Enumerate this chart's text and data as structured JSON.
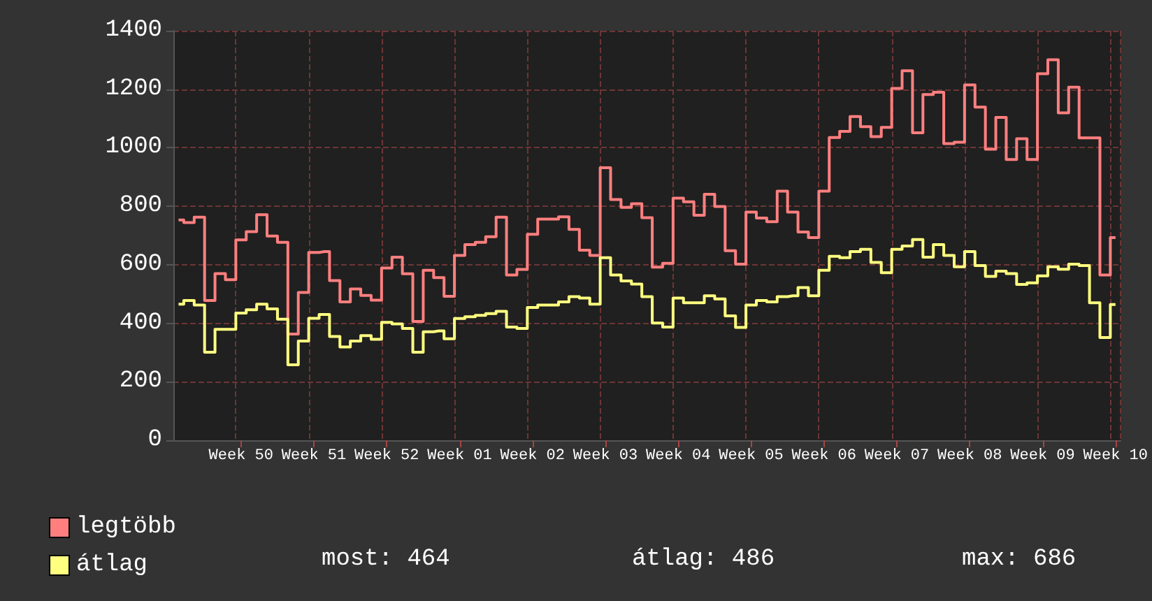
{
  "chart_data": {
    "type": "step",
    "categories": [
      null,
      null,
      null,
      null,
      null,
      null,
      "Week 50",
      null,
      null,
      null,
      null,
      null,
      null,
      "Week 51",
      null,
      null,
      null,
      null,
      null,
      null,
      "Week 52",
      null,
      null,
      null,
      null,
      null,
      null,
      "Week 01",
      null,
      null,
      null,
      null,
      null,
      null,
      "Week 02",
      null,
      null,
      null,
      null,
      null,
      null,
      "Week 03",
      null,
      null,
      null,
      null,
      null,
      null,
      "Week 04",
      null,
      null,
      null,
      null,
      null,
      null,
      "Week 05",
      null,
      null,
      null,
      null,
      null,
      null,
      "Week 06",
      null,
      null,
      null,
      null,
      null,
      null,
      "Week 07",
      null,
      null,
      null,
      null,
      null,
      null,
      "Week 08",
      null,
      null,
      null,
      null,
      null,
      null,
      "Week 09",
      null,
      null,
      null,
      null,
      null,
      null,
      "Week 10"
    ],
    "series": [
      {
        "name": "legtöbb",
        "color": "#ff7f7f",
        "values": [
          753,
          744,
          763,
          478,
          570,
          549,
          685,
          713,
          771,
          698,
          677,
          363,
          505,
          642,
          645,
          546,
          473,
          517,
          495,
          479,
          589,
          626,
          569,
          406,
          581,
          556,
          492,
          632,
          669,
          677,
          696,
          763,
          565,
          584,
          704,
          756,
          756,
          764,
          721,
          650,
          632,
          932,
          823,
          796,
          809,
          761,
          592,
          605,
          828,
          815,
          769,
          841,
          799,
          648,
          602,
          780,
          760,
          747,
          852,
          780,
          712,
          693,
          852,
          1035,
          1056,
          1107,
          1072,
          1038,
          1070,
          1203,
          1263,
          1051,
          1182,
          1190,
          1014,
          1019,
          1215,
          1139,
          995,
          1104,
          960,
          1031,
          960,
          1253,
          1301,
          1119,
          1207,
          1034,
          1034,
          565,
          693
        ]
      },
      {
        "name": "átlag",
        "color": "#ffff80",
        "values": [
          465,
          478,
          462,
          301,
          379,
          379,
          435,
          446,
          465,
          449,
          414,
          258,
          339,
          417,
          430,
          355,
          319,
          339,
          358,
          345,
          403,
          398,
          382,
          301,
          371,
          374,
          347,
          416,
          422,
          427,
          433,
          441,
          387,
          382,
          454,
          462,
          462,
          473,
          491,
          486,
          465,
          624,
          565,
          545,
          534,
          491,
          401,
          387,
          486,
          470,
          470,
          494,
          483,
          425,
          386,
          462,
          478,
          473,
          491,
          494,
          522,
          494,
          581,
          629,
          624,
          645,
          653,
          608,
          573,
          653,
          664,
          686,
          626,
          669,
          632,
          593,
          645,
          597,
          560,
          578,
          570,
          533,
          538,
          562,
          593,
          585,
          602,
          597,
          470,
          351,
          464
        ]
      }
    ],
    "ylim": [
      0,
      1400
    ],
    "yticks": [
      0,
      200,
      400,
      600,
      800,
      1000,
      1200,
      1400
    ],
    "grid": true,
    "legend": "bottom left",
    "annotations": [
      "most: 464",
      "átlag: 486",
      "max: 686"
    ]
  }
}
